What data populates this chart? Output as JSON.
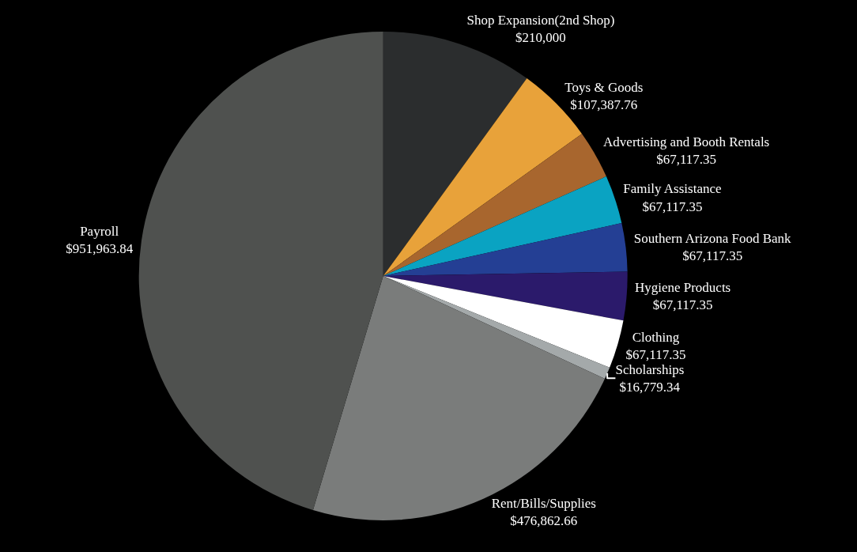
{
  "chart_data": {
    "type": "pie",
    "categories": [
      "Shop Expansion(2nd Shop)",
      "Toys & Goods",
      "Advertising and Booth Rentals",
      "Family Assistance",
      "Southern Arizona Food Bank",
      "Hygiene Products",
      "Clothing",
      "Scholarships",
      "Rent/Bills/Supplies",
      "Payroll"
    ],
    "values": [
      210000,
      107387.76,
      67117.35,
      67117.35,
      67117.35,
      67117.35,
      67117.35,
      16779.34,
      476862.66,
      951963.84
    ],
    "value_labels": [
      "$210,000",
      "$107,387.76",
      "$67,117.35",
      "$67,117.35",
      "$67,117.35",
      "$67,117.35",
      "$67,117.35",
      "$16,779.34",
      "$476,862.66",
      "$951,963.84"
    ],
    "colors": [
      "#2b2d2e",
      "#e8a23a",
      "#a8662e",
      "#0aa3c2",
      "#243f94",
      "#2b1a6b",
      "#ffffff",
      "#a4a9aa",
      "#7a7c7b",
      "#4f514f"
    ],
    "legend": false
  }
}
